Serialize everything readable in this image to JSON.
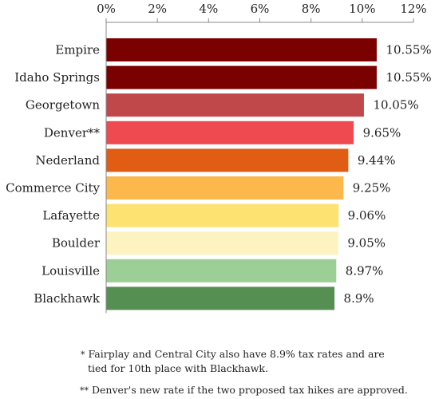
{
  "chart_data": {
    "type": "bar",
    "orientation": "horizontal",
    "categories": [
      "Empire",
      "Idaho Springs",
      "Georgetown",
      "Denver**",
      "Nederland",
      "Commerce City",
      "Lafayette",
      "Boulder",
      "Louisville",
      "Blackhawk"
    ],
    "values": [
      10.55,
      10.55,
      10.05,
      9.65,
      9.44,
      9.25,
      9.06,
      9.05,
      8.97,
      8.9
    ],
    "value_labels": [
      "10.55%",
      "10.55%",
      "10.05%",
      "9.65%",
      "9.44%",
      "9.25%",
      "9.06%",
      "9.05%",
      "8.97%",
      "8.9%"
    ],
    "colors": [
      "#7b0000",
      "#7b0000",
      "#c0474a",
      "#ee4a4f",
      "#e15d14",
      "#fcb84c",
      "#fde171",
      "#fdf3c0",
      "#9bcf96",
      "#568f52"
    ],
    "xlim": [
      0,
      12
    ],
    "xticks": [
      0,
      2,
      4,
      6,
      8,
      10,
      12
    ],
    "xtick_labels": [
      "0%",
      "2%",
      "4%",
      "6%",
      "8%",
      "10%",
      "12%"
    ],
    "x_axis_position": "top",
    "grid": false,
    "title": "",
    "xlabel": "",
    "ylabel": ""
  },
  "footnotes": {
    "fn1_mark": "*",
    "fn1_line1": "Fairplay and Central City also have 8.9% tax rates and are",
    "fn1_line2": "tied for 10th place with Blackhawk.",
    "fn2_mark": "**",
    "fn2_text": "Denver's new rate if the two proposed tax hikes are approved."
  }
}
